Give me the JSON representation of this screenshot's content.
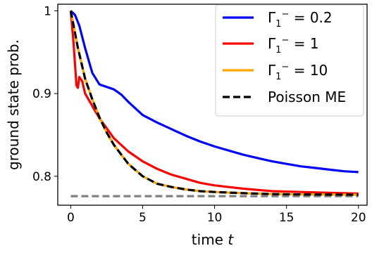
{
  "chart_data": {
    "type": "line",
    "title": "",
    "xlabel": "time t",
    "ylabel": "ground state prob.",
    "xlim": [
      -0.9,
      20.6
    ],
    "ylim": [
      0.765,
      1.008
    ],
    "xticks": [
      0,
      5,
      10,
      15,
      20
    ],
    "yticks": [
      0.8,
      0.9,
      1.0
    ],
    "ytick_labels": [
      "0.8",
      "0.9",
      "1"
    ],
    "grid": false,
    "legend_position": "top-right",
    "series": [
      {
        "name": "Γ₁⁻ = 0.2",
        "color": "#0000ff",
        "style": "solid",
        "x": [
          0,
          0.3,
          0.6,
          1.0,
          1.5,
          2.0,
          2.5,
          3.0,
          3.5,
          4.0,
          5.0,
          6.0,
          7.0,
          8.0,
          9.0,
          10.0,
          11.0,
          12.0,
          13.0,
          14.0,
          15.0,
          16.0,
          17.0,
          18.0,
          19.0,
          20.0
        ],
        "y": [
          1.0,
          0.995,
          0.982,
          0.955,
          0.925,
          0.911,
          0.908,
          0.905,
          0.899,
          0.89,
          0.874,
          0.865,
          0.857,
          0.849,
          0.842,
          0.836,
          0.831,
          0.826,
          0.822,
          0.818,
          0.815,
          0.812,
          0.81,
          0.808,
          0.806,
          0.805
        ]
      },
      {
        "name": "Γ₁⁻ = 1",
        "color": "#ff0000",
        "style": "solid",
        "x": [
          0,
          0.2,
          0.4,
          0.5,
          0.6,
          0.8,
          1.0,
          1.2,
          1.5,
          2.0,
          2.5,
          3.0,
          4.0,
          5.0,
          6.0,
          7.0,
          8.0,
          9.0,
          10.0,
          12.0,
          14.0,
          16.0,
          18.0,
          20.0
        ],
        "y": [
          1.0,
          0.96,
          0.91,
          0.907,
          0.92,
          0.915,
          0.9,
          0.894,
          0.885,
          0.87,
          0.858,
          0.846,
          0.83,
          0.818,
          0.809,
          0.802,
          0.797,
          0.792,
          0.789,
          0.785,
          0.782,
          0.781,
          0.78,
          0.779
        ]
      },
      {
        "name": "Γ₁⁻ = 10",
        "color": "#ffa500",
        "style": "solid",
        "x": [
          0,
          0.5,
          1.0,
          1.5,
          2.0,
          2.5,
          3.0,
          4.0,
          5.0,
          6.0,
          7.0,
          8.0,
          9.0,
          10.0,
          12.0,
          14.0,
          16.0,
          18.0,
          20.0
        ],
        "y": [
          1.0,
          0.955,
          0.918,
          0.893,
          0.871,
          0.853,
          0.838,
          0.815,
          0.8,
          0.791,
          0.787,
          0.784,
          0.782,
          0.781,
          0.7795,
          0.7785,
          0.778,
          0.7778,
          0.7777
        ]
      },
      {
        "name": "Poisson ME",
        "color": "#000000",
        "style": "dashed",
        "x": [
          0,
          0.5,
          1.0,
          1.5,
          2.0,
          2.5,
          3.0,
          4.0,
          5.0,
          6.0,
          7.0,
          8.0,
          9.0,
          10.0,
          12.0,
          14.0,
          16.0,
          18.0,
          20.0
        ],
        "y": [
          1.0,
          0.955,
          0.918,
          0.893,
          0.871,
          0.853,
          0.838,
          0.815,
          0.8,
          0.791,
          0.787,
          0.784,
          0.782,
          0.781,
          0.7795,
          0.7785,
          0.778,
          0.7778,
          0.7777
        ]
      },
      {
        "name": "",
        "color": "#808080",
        "style": "dashed",
        "x": [
          0,
          20
        ],
        "y": [
          0.776,
          0.776
        ]
      }
    ],
    "legend_entries": [
      "Γ₁⁻ = 0.2",
      "Γ₁⁻ = 1",
      "Γ₁⁻ = 10",
      "Poisson ME"
    ]
  }
}
